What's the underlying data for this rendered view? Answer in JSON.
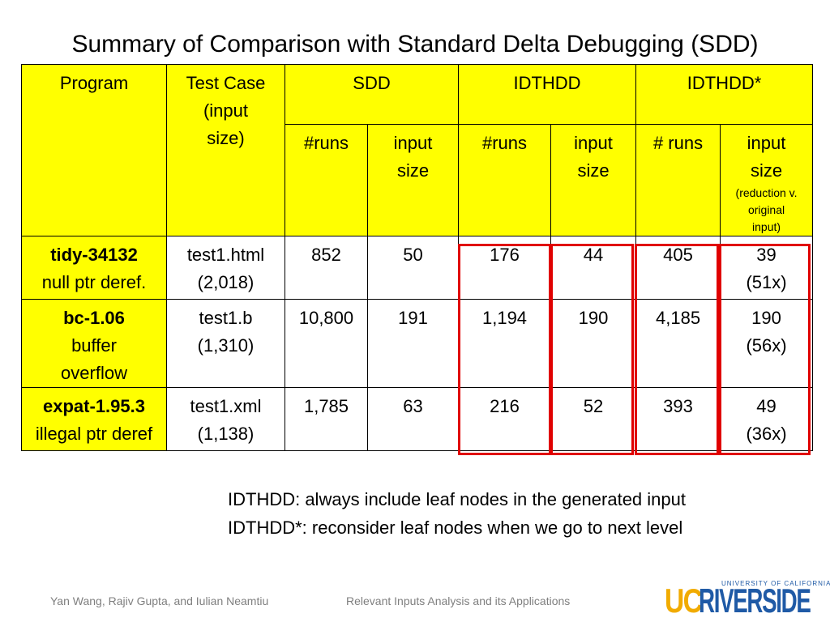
{
  "slide": {
    "title": "Summary of Comparison with Standard Delta Debugging (SDD)"
  },
  "table": {
    "header": {
      "program": "Program",
      "test_case_line1": "Test Case",
      "test_case_line2": "(input",
      "test_case_line3": "size)",
      "groups": [
        "SDD",
        "IDTHDD",
        "IDTHDD*"
      ],
      "runs": "#runs",
      "runs_spaced": "# runs",
      "input_size_line1": "input",
      "input_size_line2": "size",
      "reduction_note_line1": "(reduction v.",
      "reduction_note_line2": "original",
      "reduction_note_line3": "input)"
    },
    "rows": [
      {
        "program_name": "tidy-34132",
        "program_desc_line1": "null ptr deref.",
        "program_desc_line2": "",
        "test_file": "test1.html",
        "test_size": "(2,018)",
        "sdd_runs": "852",
        "sdd_size": "50",
        "idthdd_runs": "176",
        "idthdd_size": "44",
        "idthdd_star_runs": "405",
        "idthdd_star_size": "39",
        "idthdd_star_ratio": "(51x)"
      },
      {
        "program_name": "bc-1.06",
        "program_desc_line1": "buffer",
        "program_desc_line2": "overflow",
        "test_file": "test1.b",
        "test_size": "(1,310)",
        "sdd_runs": "10,800",
        "sdd_size": "191",
        "idthdd_runs": "1,194",
        "idthdd_size": "190",
        "idthdd_star_runs": "4,185",
        "idthdd_star_size": "190",
        "idthdd_star_ratio": "(56x)"
      },
      {
        "program_name": "expat-1.95.3",
        "program_desc_line1": "illegal ptr deref",
        "program_desc_line2": "",
        "test_file": "test1.xml",
        "test_size": "(1,138)",
        "sdd_runs": "1,785",
        "sdd_size": "63",
        "idthdd_runs": "216",
        "idthdd_size": "52",
        "idthdd_star_runs": "393",
        "idthdd_star_size": "49",
        "idthdd_star_ratio": "(36x)"
      }
    ]
  },
  "legend": {
    "line1": "IDTHDD: always include leaf nodes in the generated input",
    "line2": "IDTHDD*: reconsider leaf nodes when we go to next level"
  },
  "footer": {
    "authors": "Yan Wang, Rajiv Gupta, and Iulian Neamtiu",
    "talk_title": "Relevant Inputs Analysis and its Applications"
  },
  "logo": {
    "uc": "UC",
    "riverside": "RIVERSIDE",
    "university": "UNIVERSITY OF CALIFORNIA"
  },
  "colors": {
    "header_fill": "#ffff00",
    "highlight_box": "#e00000",
    "logo_gold": "#f1ab00",
    "logo_blue": "#1f5aa6"
  }
}
